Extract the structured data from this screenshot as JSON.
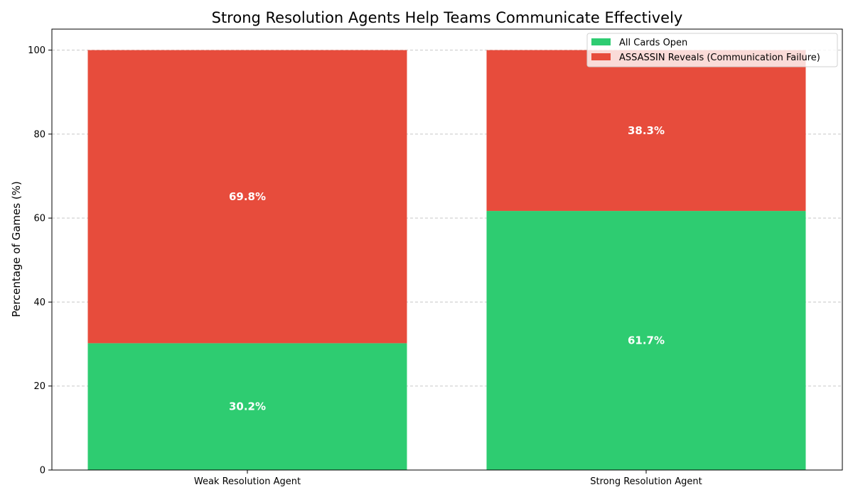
{
  "chart_data": {
    "type": "bar",
    "stacked": true,
    "title": "Strong Resolution Agents Help Teams Communicate Effectively",
    "xlabel": "",
    "ylabel": "Percentage of Games (%)",
    "ylim": [
      0,
      105
    ],
    "yticks": [
      0,
      20,
      40,
      60,
      80,
      100
    ],
    "grid": "y-dashed",
    "legend_position": "top-right",
    "categories": [
      "Weak Resolution Agent",
      "Strong Resolution Agent"
    ],
    "series": [
      {
        "name": "All Cards Open",
        "color": "#2ecc71",
        "values": [
          30.2,
          61.7
        ],
        "labels": [
          "30.2%",
          "61.7%"
        ]
      },
      {
        "name": "ASSASSIN Reveals (Communication Failure)",
        "color": "#e74c3c",
        "values": [
          69.8,
          38.3
        ],
        "labels": [
          "69.8%",
          "38.3%"
        ]
      }
    ]
  }
}
